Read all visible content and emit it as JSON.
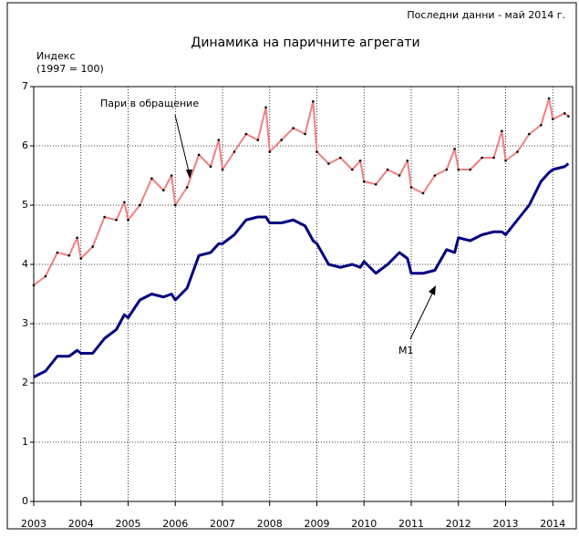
{
  "chart_data": {
    "type": "line",
    "title": "Динамика на паричните агрегати",
    "subtitle": "Последни данни - май 2014 г.",
    "ylabel": [
      "Индекс",
      "(1997 = 100)"
    ],
    "x": [
      2003,
      2003.25,
      2003.5,
      2003.75,
      2003.92,
      2004,
      2004.25,
      2004.5,
      2004.75,
      2004.92,
      2005,
      2005.25,
      2005.5,
      2005.75,
      2005.92,
      2006,
      2006.25,
      2006.5,
      2006.75,
      2006.92,
      2007,
      2007.25,
      2007.5,
      2007.75,
      2007.92,
      2008,
      2008.25,
      2008.5,
      2008.75,
      2008.92,
      2009,
      2009.25,
      2009.5,
      2009.75,
      2009.92,
      2010,
      2010.25,
      2010.5,
      2010.75,
      2010.92,
      2011,
      2011.25,
      2011.5,
      2011.75,
      2011.92,
      2012,
      2012.25,
      2012.5,
      2012.75,
      2012.92,
      2013,
      2013.25,
      2013.5,
      2013.75,
      2013.92,
      2014,
      2014.25,
      2014.33
    ],
    "series": [
      {
        "name": "Пари в обращение",
        "color": "#f08080",
        "marker_color": "#000000",
        "values": [
          3.65,
          3.8,
          4.2,
          4.15,
          4.45,
          4.1,
          4.3,
          4.8,
          4.75,
          5.05,
          4.75,
          5.0,
          5.45,
          5.25,
          5.5,
          5.0,
          5.3,
          5.85,
          5.65,
          6.1,
          5.6,
          5.9,
          6.2,
          6.1,
          6.65,
          5.9,
          6.1,
          6.3,
          6.2,
          6.75,
          5.9,
          5.7,
          5.8,
          5.6,
          5.75,
          5.4,
          5.35,
          5.6,
          5.5,
          5.75,
          5.3,
          5.2,
          5.5,
          5.6,
          5.95,
          5.6,
          5.6,
          5.8,
          5.8,
          6.25,
          5.75,
          5.9,
          6.2,
          6.35,
          6.8,
          6.45,
          6.55,
          6.5
        ]
      },
      {
        "name": "М1",
        "color": "#000080",
        "values": [
          2.1,
          2.2,
          2.45,
          2.45,
          2.55,
          2.5,
          2.5,
          2.75,
          2.9,
          3.15,
          3.1,
          3.4,
          3.5,
          3.45,
          3.5,
          3.4,
          3.6,
          4.15,
          4.2,
          4.35,
          4.35,
          4.5,
          4.75,
          4.8,
          4.8,
          4.7,
          4.7,
          4.75,
          4.65,
          4.4,
          4.35,
          4.0,
          3.95,
          4.0,
          3.95,
          4.05,
          3.85,
          4.0,
          4.2,
          4.1,
          3.85,
          3.85,
          3.9,
          4.25,
          4.2,
          4.45,
          4.4,
          4.5,
          4.55,
          4.55,
          4.5,
          4.75,
          5.0,
          5.4,
          5.55,
          5.6,
          5.65,
          5.7
        ]
      }
    ],
    "xlim": [
      2003,
      2014.42
    ],
    "xticks": [
      2003,
      2004,
      2005,
      2006,
      2007,
      2008,
      2009,
      2010,
      2011,
      2012,
      2013,
      2014
    ],
    "ylim": [
      0,
      7
    ],
    "yticks": [
      0,
      1,
      2,
      3,
      4,
      5,
      6,
      7
    ],
    "grid": true
  }
}
